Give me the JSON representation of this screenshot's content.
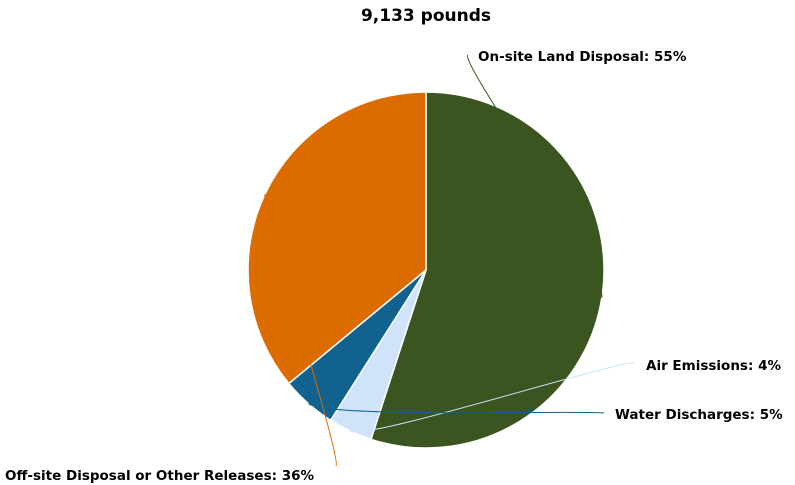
{
  "chart_data": {
    "type": "pie",
    "title": "9,133 pounds",
    "start_angle_deg": 0,
    "slices": [
      {
        "label": "On-site Land Disposal",
        "value": 55,
        "color": "#3b5520"
      },
      {
        "label": "Air Emissions",
        "value": 4,
        "color": "#cfe3fa"
      },
      {
        "label": "Water Discharges",
        "value": 5,
        "color": "#11628f"
      },
      {
        "label": "Off-site Disposal or Other Releases",
        "value": 36,
        "color": "#dd6c00"
      }
    ]
  }
}
